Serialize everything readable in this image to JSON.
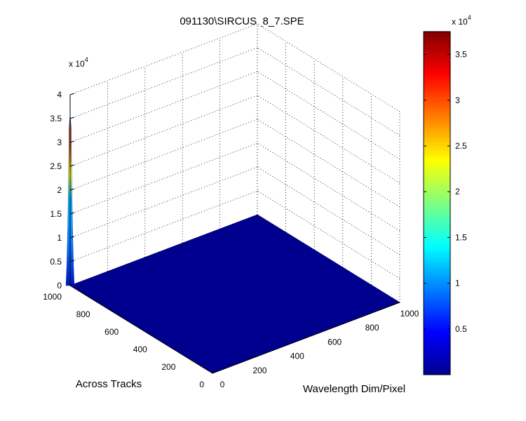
{
  "chart_data": [
    {
      "type": "surface",
      "title": "091130\\SIRCUS_8_7.SPE",
      "xlabel": "Wavelength Dim/Pixel",
      "ylabel": "Across Tracks",
      "zlabel": "",
      "x_ticks": [
        "0",
        "200",
        "400",
        "600",
        "800",
        "1000"
      ],
      "y_ticks": [
        "0",
        "200",
        "400",
        "600",
        "800",
        "1000"
      ],
      "z_ticks": [
        "0",
        "0.5",
        "1",
        "1.5",
        "2",
        "2.5",
        "3",
        "3.5",
        "4"
      ],
      "z_exponent": "x 10",
      "z_exponent_power": "4",
      "xlim": [
        0,
        1000
      ],
      "ylim": [
        0,
        1000
      ],
      "zlim": [
        0,
        40000
      ],
      "grid": true,
      "baseline_z": 0,
      "peak": {
        "x": 0,
        "y": 1000,
        "z": 36000
      }
    },
    {
      "type": "colorbar",
      "colormap": "jet",
      "range": [
        0,
        37500
      ],
      "ticks": [
        "0.5",
        "1",
        "1.5",
        "2",
        "2.5",
        "3",
        "3.5"
      ],
      "exponent": "x 10",
      "exponent_power": "4"
    }
  ]
}
